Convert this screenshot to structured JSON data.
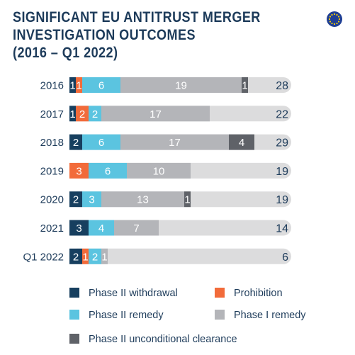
{
  "chart_data": {
    "type": "bar",
    "orientation": "horizontal",
    "stacked": true,
    "title_lines": [
      "SIGNIFICANT EU ANTITRUST MERGER",
      "INVESTIGATION OUTCOMES",
      "(2016 – Q1 2022)"
    ],
    "categories": [
      "2016",
      "2017",
      "2018",
      "2019",
      "2020",
      "2021",
      "Q1 2022"
    ],
    "series": [
      {
        "name": "Phase II withdrawal",
        "color": "#173f5f",
        "text_color": "#ffffff",
        "values": [
          1,
          1,
          2,
          0,
          2,
          3,
          2
        ]
      },
      {
        "name": "Prohibition",
        "color": "#f26b3a",
        "text_color": "#ffffff",
        "values": [
          1,
          2,
          0,
          3,
          0,
          0,
          1
        ]
      },
      {
        "name": "Phase II remedy",
        "color": "#5bc4e0",
        "text_color": "#ffffff",
        "values": [
          6,
          2,
          6,
          6,
          3,
          4,
          2
        ]
      },
      {
        "name": "Phase I remedy",
        "color": "#b4b5b9",
        "text_color": "#ffffff",
        "values": [
          19,
          17,
          17,
          10,
          13,
          7,
          1
        ]
      },
      {
        "name": "Phase II unconditional clearance",
        "color": "#5f6268",
        "text_color": "#ffffff",
        "values": [
          1,
          0,
          4,
          0,
          1,
          0,
          0
        ]
      }
    ],
    "totals": [
      "28",
      "22",
      "29",
      "19",
      "19",
      "14",
      "6"
    ],
    "legend_placement": "bottom",
    "grid": false,
    "track_color": "#dcdcdd",
    "text_color": "#1d3b5a",
    "icon": "eu-flag-icon"
  }
}
